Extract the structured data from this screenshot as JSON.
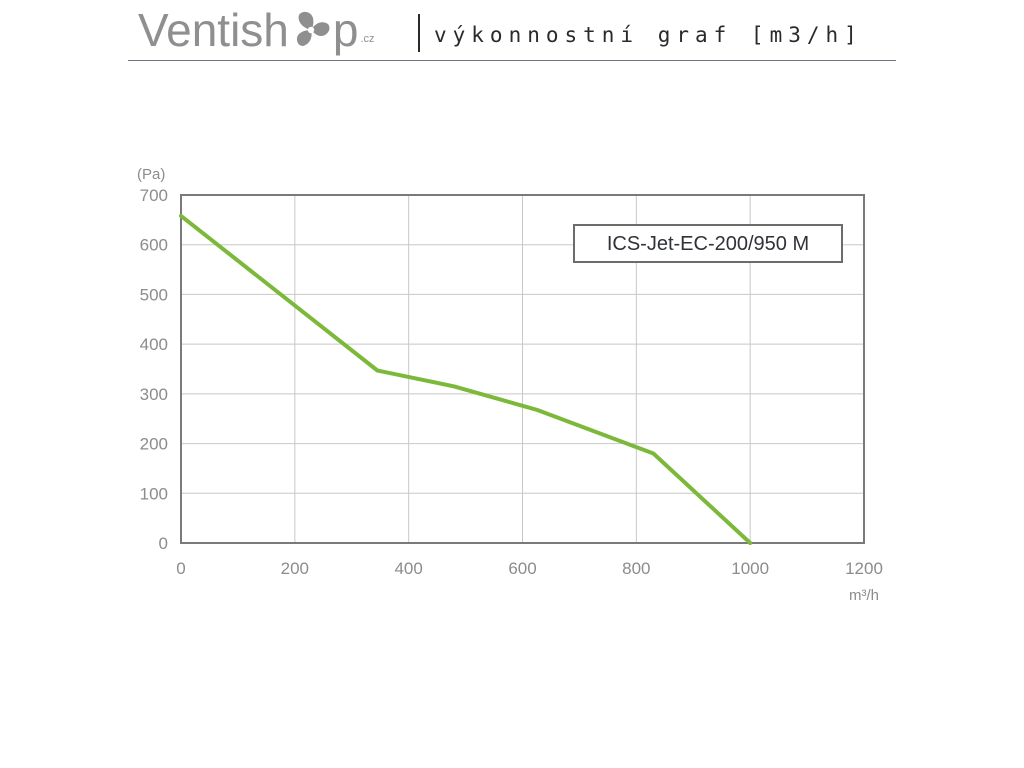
{
  "header": {
    "brand": "Ventish",
    "brand_end": "p",
    "tld": ".cz",
    "title": "výkonnostní graf [m3/h]"
  },
  "colors": {
    "curve": "#7cb83a",
    "frame": "#7a7a7a",
    "grid": "#c8c8c8",
    "tick_text": "#8c8c8c",
    "logo": "#8f8f8f"
  },
  "icons": {
    "logo_fan": "fan-icon"
  },
  "chart_data": {
    "type": "line",
    "title": "",
    "xlabel": "m³/h",
    "ylabel": "(Pa)",
    "xlim": [
      0,
      1200
    ],
    "ylim": [
      0,
      700
    ],
    "x_ticks": [
      0,
      200,
      400,
      600,
      800,
      1000,
      1200
    ],
    "y_ticks": [
      0,
      100,
      200,
      300,
      400,
      500,
      600,
      700
    ],
    "grid": true,
    "legend_position": "top-right",
    "series": [
      {
        "name": "ICS-Jet-EC-200/950 M",
        "x": [
          0,
          345,
          480,
          625,
          830,
          1000
        ],
        "y": [
          658,
          347,
          315,
          268,
          180,
          0
        ]
      }
    ]
  }
}
